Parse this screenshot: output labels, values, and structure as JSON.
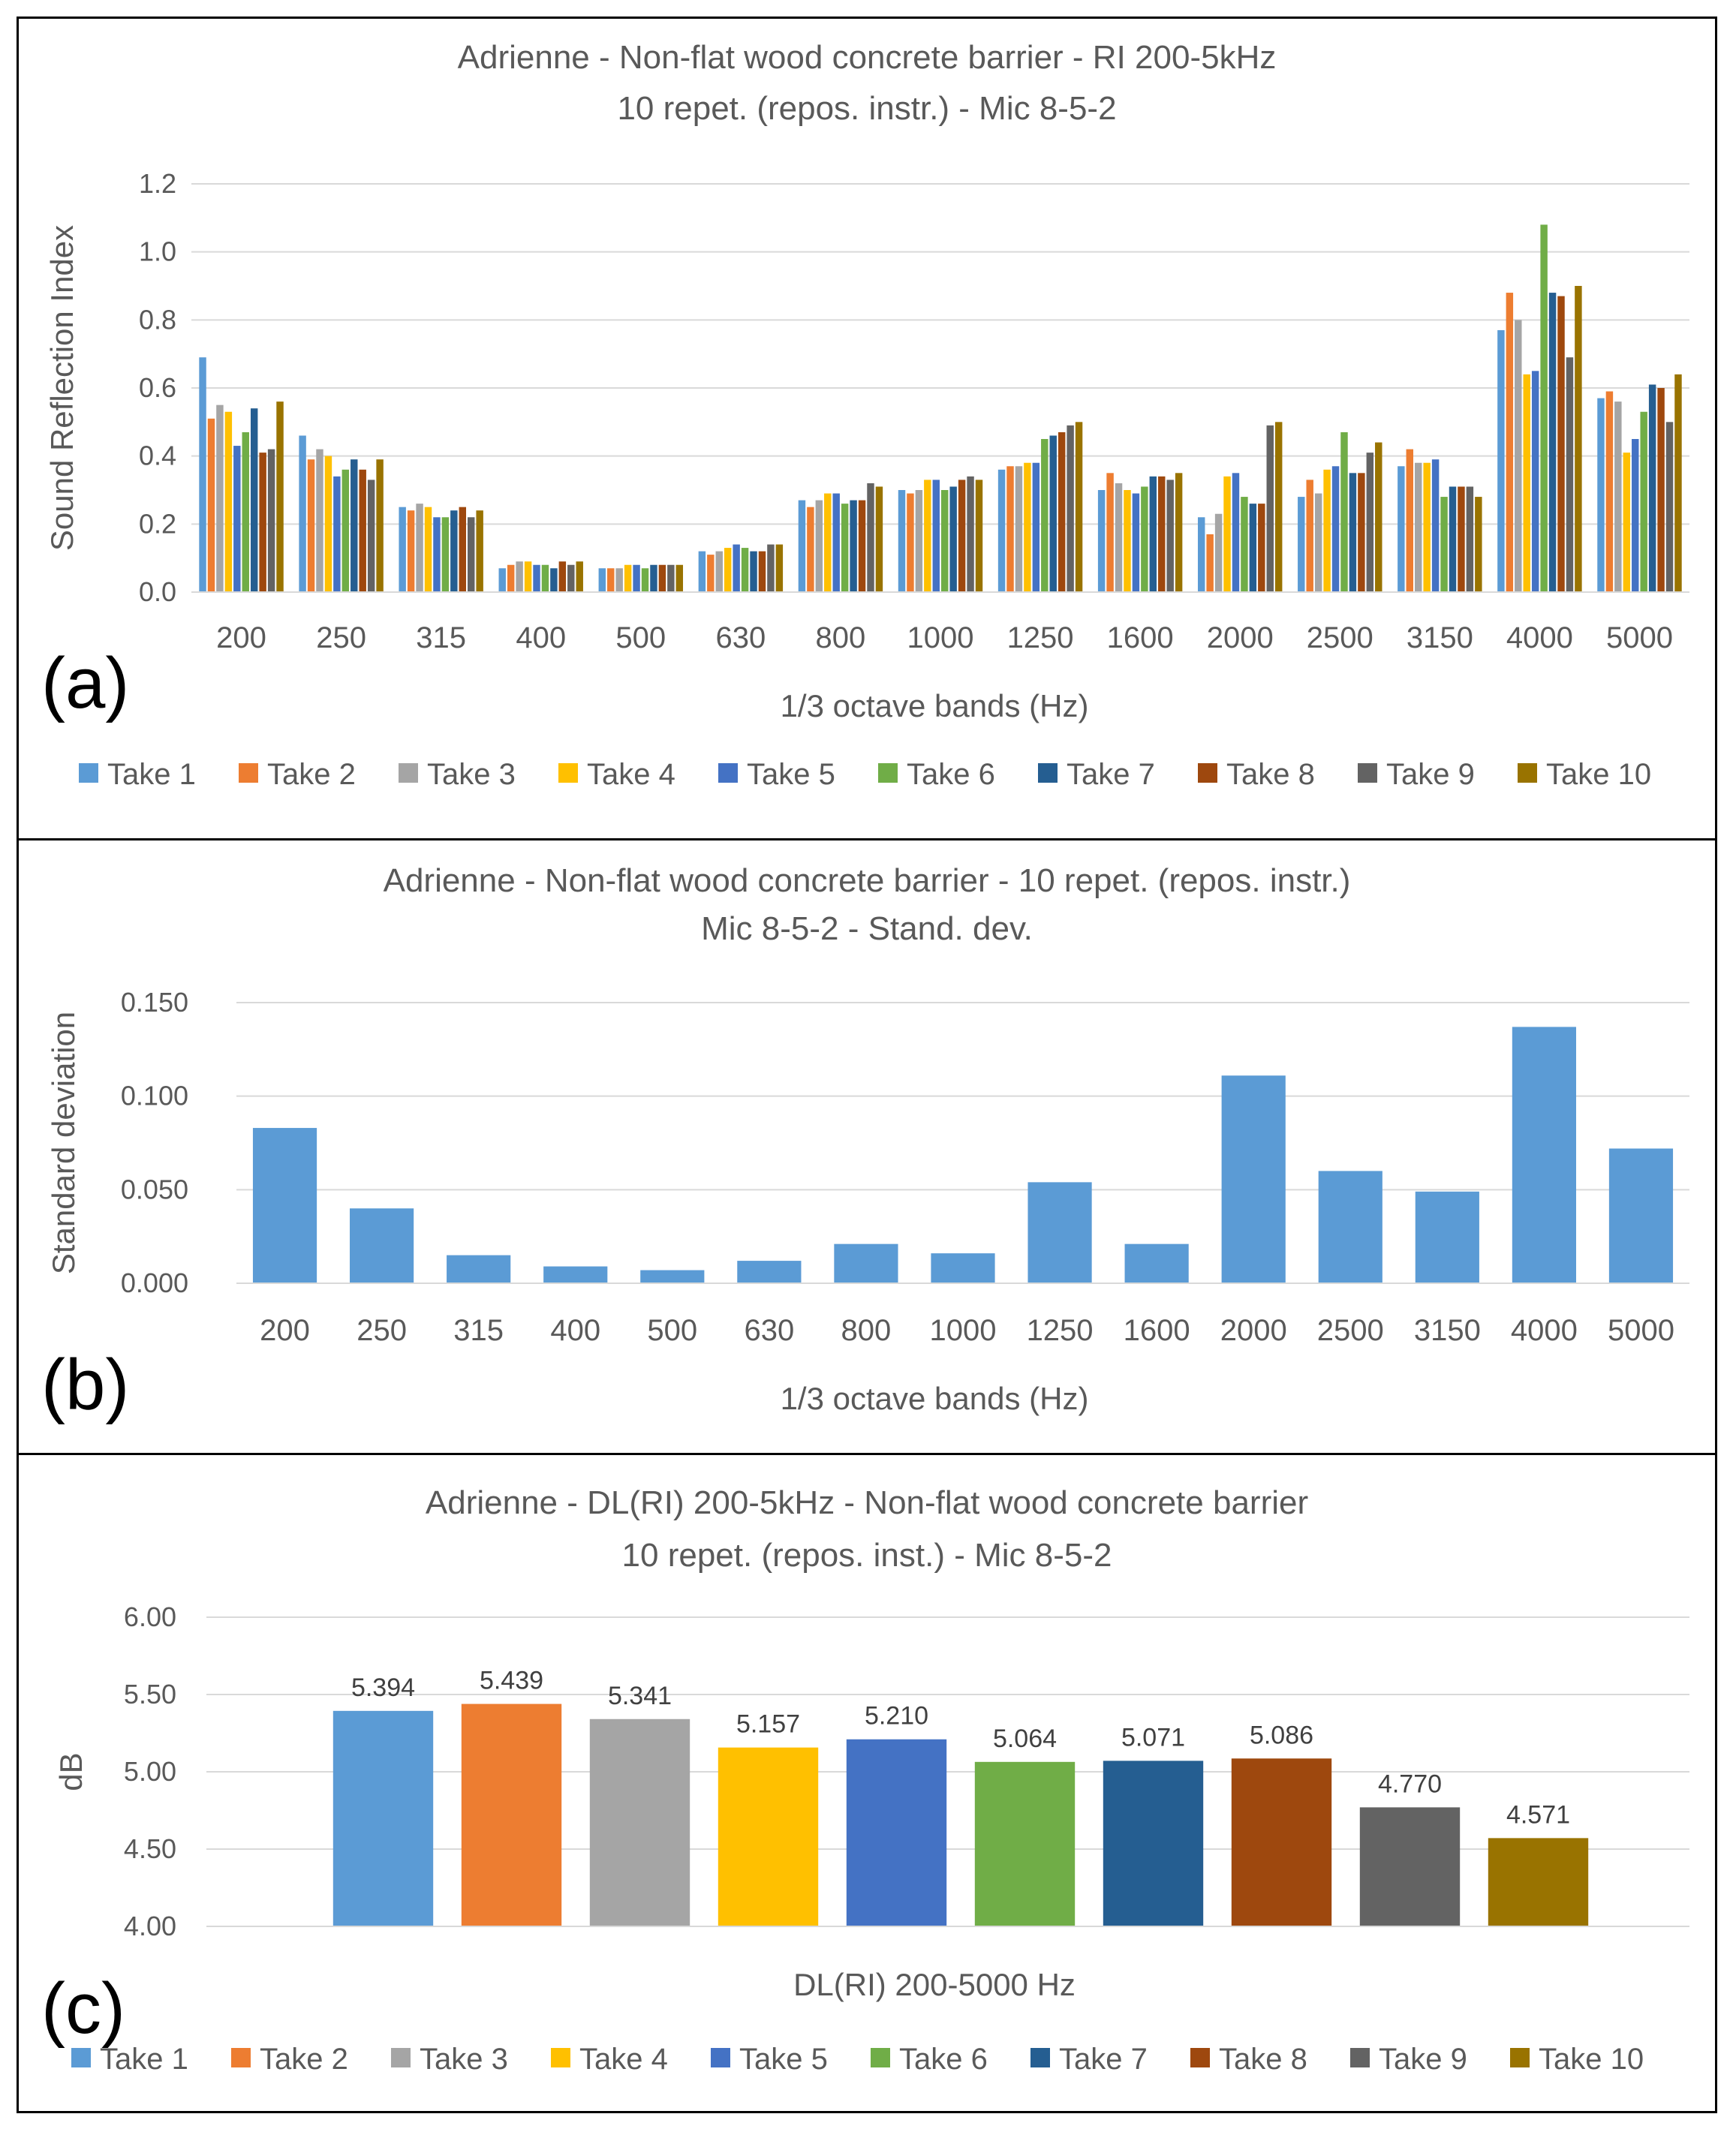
{
  "chart_data": [
    {
      "type": "bar",
      "panel_label": "(a)",
      "title_lines": [
        "Adrienne - Non-flat wood concrete barrier - RI 200-5kHz",
        "10 repet. (repos. instr.) - Mic 8-5-2"
      ],
      "xlabel": "1/3 octave bands (Hz)",
      "ylabel": "Sound Reflection Index",
      "ylim": [
        0,
        1.2
      ],
      "yticks": [
        "0.0",
        "0.2",
        "0.4",
        "0.6",
        "0.8",
        "1.0",
        "1.2"
      ],
      "ytick_values": [
        0,
        0.2,
        0.4,
        0.6,
        0.8,
        1.0,
        1.2
      ],
      "categories": [
        "200",
        "250",
        "315",
        "400",
        "500",
        "630",
        "800",
        "1000",
        "1250",
        "1600",
        "2000",
        "2500",
        "3150",
        "4000",
        "5000"
      ],
      "series": [
        {
          "name": "Take 1",
          "values": [
            0.69,
            0.46,
            0.25,
            0.07,
            0.07,
            0.12,
            0.27,
            0.3,
            0.36,
            0.3,
            0.22,
            0.28,
            0.37,
            0.77,
            0.57
          ]
        },
        {
          "name": "Take 2",
          "values": [
            0.51,
            0.39,
            0.24,
            0.08,
            0.07,
            0.11,
            0.25,
            0.29,
            0.37,
            0.35,
            0.17,
            0.33,
            0.42,
            0.88,
            0.59
          ]
        },
        {
          "name": "Take 3",
          "values": [
            0.55,
            0.42,
            0.26,
            0.09,
            0.07,
            0.12,
            0.27,
            0.3,
            0.37,
            0.32,
            0.23,
            0.29,
            0.38,
            0.8,
            0.56
          ]
        },
        {
          "name": "Take 4",
          "values": [
            0.53,
            0.4,
            0.25,
            0.09,
            0.08,
            0.13,
            0.29,
            0.33,
            0.38,
            0.3,
            0.34,
            0.36,
            0.38,
            0.64,
            0.41
          ]
        },
        {
          "name": "Take 5",
          "values": [
            0.43,
            0.34,
            0.22,
            0.08,
            0.08,
            0.14,
            0.29,
            0.33,
            0.38,
            0.29,
            0.35,
            0.37,
            0.39,
            0.65,
            0.45
          ]
        },
        {
          "name": "Take 6",
          "values": [
            0.47,
            0.36,
            0.22,
            0.08,
            0.07,
            0.13,
            0.26,
            0.3,
            0.45,
            0.31,
            0.28,
            0.47,
            0.28,
            1.08,
            0.53
          ]
        },
        {
          "name": "Take 7",
          "values": [
            0.54,
            0.39,
            0.24,
            0.07,
            0.08,
            0.12,
            0.27,
            0.31,
            0.46,
            0.34,
            0.26,
            0.35,
            0.31,
            0.88,
            0.61
          ]
        },
        {
          "name": "Take 8",
          "values": [
            0.41,
            0.36,
            0.25,
            0.09,
            0.08,
            0.12,
            0.27,
            0.33,
            0.47,
            0.34,
            0.26,
            0.35,
            0.31,
            0.87,
            0.6
          ]
        },
        {
          "name": "Take 9",
          "values": [
            0.42,
            0.33,
            0.22,
            0.08,
            0.08,
            0.14,
            0.32,
            0.34,
            0.49,
            0.33,
            0.49,
            0.41,
            0.31,
            0.69,
            0.5
          ]
        },
        {
          "name": "Take 10",
          "values": [
            0.56,
            0.39,
            0.24,
            0.09,
            0.08,
            0.14,
            0.31,
            0.33,
            0.5,
            0.35,
            0.5,
            0.44,
            0.28,
            0.9,
            0.64
          ]
        }
      ],
      "legend": "bottom"
    },
    {
      "type": "bar",
      "panel_label": "(b)",
      "title_lines": [
        "Adrienne - Non-flat wood concrete barrier - 10 repet. (repos. instr.)",
        "Mic 8-5-2 - Stand. dev."
      ],
      "xlabel": "1/3 octave bands (Hz)",
      "ylabel": "Standard deviation",
      "ylim": [
        0,
        0.15
      ],
      "yticks": [
        "0.000",
        "0.050",
        "0.100",
        "0.150"
      ],
      "ytick_values": [
        0,
        0.05,
        0.1,
        0.15
      ],
      "categories": [
        "200",
        "250",
        "315",
        "400",
        "500",
        "630",
        "800",
        "1000",
        "1250",
        "1600",
        "2000",
        "2500",
        "3150",
        "4000",
        "5000"
      ],
      "values": [
        0.083,
        0.04,
        0.015,
        0.009,
        0.007,
        0.012,
        0.021,
        0.016,
        0.054,
        0.021,
        0.111,
        0.06,
        0.049,
        0.137,
        0.072
      ]
    },
    {
      "type": "bar",
      "panel_label": "(c)",
      "title_lines": [
        "Adrienne - DL(RI) 200-5kHz - Non-flat wood concrete barrier",
        "10 repet. (repos. inst.) - Mic 8-5-2"
      ],
      "xlabel": "DL(RI) 200-5000 Hz",
      "ylabel": "dB",
      "ylim": [
        4.0,
        6.0
      ],
      "yticks": [
        "4.00",
        "4.50",
        "5.00",
        "5.50",
        "6.00"
      ],
      "ytick_values": [
        4.0,
        4.5,
        5.0,
        5.5,
        6.0
      ],
      "categories": [
        "Take 1",
        "Take 2",
        "Take 3",
        "Take 4",
        "Take 5",
        "Take 6",
        "Take 7",
        "Take 8",
        "Take 9",
        "Take 10"
      ],
      "values": [
        5.394,
        5.439,
        5.341,
        5.157,
        5.21,
        5.064,
        5.071,
        5.086,
        4.77,
        4.571
      ],
      "data_labels": [
        "5.394",
        "5.439",
        "5.341",
        "5.157",
        "5.210",
        "5.064",
        "5.071",
        "5.086",
        "4.770",
        "4.571"
      ],
      "legend": "bottom"
    }
  ],
  "colors": {
    "takes": [
      "#5B9BD5",
      "#ED7D31",
      "#A5A5A5",
      "#FFC000",
      "#4472C4",
      "#70AD47",
      "#255E91",
      "#9E480E",
      "#636363",
      "#997300"
    ],
    "stdev": "#5B9BD5",
    "grid": "#D9D9D9"
  }
}
